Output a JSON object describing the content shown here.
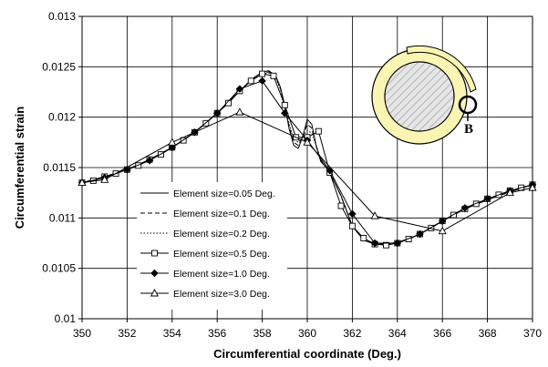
{
  "chart_data": {
    "type": "line",
    "xlabel": "Circumferential coordinate (Deg.)",
    "ylabel": "Circumferential strain",
    "xlim": [
      350,
      370
    ],
    "ylim": [
      0.01,
      0.013
    ],
    "x_ticks": [
      "350",
      "352",
      "354",
      "356",
      "358",
      "360",
      "362",
      "364",
      "366",
      "368",
      "370"
    ],
    "y_ticks": [
      "0.01",
      "0.0105",
      "0.011",
      "0.0115",
      "0.012",
      "0.0125",
      "0.013"
    ],
    "grid": true,
    "legend_position": "lower-left",
    "series": [
      {
        "name": "Element size=0.05 Deg.",
        "style": "solid",
        "marker": "none",
        "x": [
          350,
          351,
          352,
          353,
          354,
          355,
          356,
          357,
          357.5,
          358,
          358.3,
          358.6,
          358.8,
          359,
          359.2,
          359.4,
          359.6,
          359.8,
          360,
          360.2,
          360.4,
          360.6,
          360.8,
          361,
          361.5,
          362,
          362.5,
          363,
          363.5,
          364,
          364.5,
          365,
          366,
          367,
          368,
          369,
          370
        ],
        "y": [
          0.01135,
          0.01141,
          0.01148,
          0.01158,
          0.0117,
          0.01185,
          0.01204,
          0.01226,
          0.01237,
          0.01245,
          0.01246,
          0.01241,
          0.0123,
          0.01212,
          0.01188,
          0.01172,
          0.01169,
          0.01181,
          0.01198,
          0.01193,
          0.01171,
          0.01156,
          0.01151,
          0.01145,
          0.01122,
          0.01092,
          0.01078,
          0.01074,
          0.01074,
          0.01076,
          0.01079,
          0.01084,
          0.01097,
          0.01109,
          0.01118,
          0.01126,
          0.01133
        ]
      },
      {
        "name": "Element size=0.1 Deg.",
        "style": "dashed",
        "marker": "none",
        "x": [
          350,
          351,
          352,
          353,
          354,
          355,
          356,
          357,
          357.5,
          358,
          358.3,
          358.6,
          358.8,
          359,
          359.2,
          359.4,
          359.6,
          359.8,
          360,
          360.2,
          360.4,
          360.6,
          360.8,
          361,
          361.5,
          362,
          362.5,
          363,
          363.5,
          364,
          364.5,
          365,
          366,
          367,
          368,
          369,
          370
        ],
        "y": [
          0.01135,
          0.01141,
          0.01148,
          0.01158,
          0.0117,
          0.01185,
          0.01204,
          0.01226,
          0.01237,
          0.01244,
          0.01245,
          0.0124,
          0.01229,
          0.01211,
          0.0119,
          0.01175,
          0.01172,
          0.01181,
          0.01193,
          0.01189,
          0.01171,
          0.01157,
          0.01151,
          0.01145,
          0.01122,
          0.01092,
          0.01078,
          0.01074,
          0.01074,
          0.01076,
          0.01079,
          0.01084,
          0.01097,
          0.01109,
          0.01118,
          0.01126,
          0.01133
        ]
      },
      {
        "name": "Element size=0.2 Deg.",
        "style": "dotted",
        "marker": "none",
        "x": [
          350,
          351,
          352,
          353,
          354,
          355,
          356,
          357,
          357.5,
          358,
          358.3,
          358.6,
          358.8,
          359,
          359.2,
          359.4,
          359.6,
          359.8,
          360,
          360.2,
          360.4,
          360.6,
          360.8,
          361,
          361.5,
          362,
          362.5,
          363,
          363.5,
          364,
          364.5,
          365,
          366,
          367,
          368,
          369,
          370
        ],
        "y": [
          0.01135,
          0.01141,
          0.01148,
          0.01158,
          0.0117,
          0.01185,
          0.01204,
          0.01226,
          0.01236,
          0.01243,
          0.01244,
          0.01239,
          0.01228,
          0.01211,
          0.01193,
          0.01179,
          0.01175,
          0.0118,
          0.01187,
          0.01184,
          0.01172,
          0.01158,
          0.01151,
          0.01145,
          0.01122,
          0.01092,
          0.01078,
          0.01074,
          0.01074,
          0.01076,
          0.01079,
          0.01084,
          0.01097,
          0.01109,
          0.01118,
          0.01126,
          0.01133
        ]
      },
      {
        "name": "Element size=0.5 Deg.",
        "style": "solid",
        "marker": "square",
        "x": [
          350,
          350.5,
          351,
          351.5,
          352,
          352.5,
          353,
          353.5,
          354,
          354.5,
          355,
          355.5,
          356,
          356.5,
          357,
          357.5,
          358,
          358.5,
          359,
          359.5,
          360,
          360.5,
          361,
          361.5,
          362,
          362.5,
          363,
          363.5,
          364,
          364.5,
          365,
          365.5,
          366,
          366.5,
          367,
          367.5,
          368,
          368.5,
          369,
          369.5,
          370
        ],
        "y": [
          0.01135,
          0.01137,
          0.01141,
          0.01144,
          0.01148,
          0.01152,
          0.01158,
          0.01163,
          0.0117,
          0.01177,
          0.01185,
          0.01194,
          0.01204,
          0.01214,
          0.01226,
          0.01236,
          0.01243,
          0.01241,
          0.01212,
          0.0118,
          0.0118,
          0.01186,
          0.01145,
          0.01112,
          0.01092,
          0.0108,
          0.01074,
          0.01073,
          0.01075,
          0.01079,
          0.01084,
          0.0109,
          0.01097,
          0.01103,
          0.01109,
          0.01114,
          0.01119,
          0.01123,
          0.01127,
          0.0113,
          0.01133
        ]
      },
      {
        "name": "Element size=1.0 Deg.",
        "style": "solid",
        "marker": "diamond",
        "x": [
          350,
          351,
          352,
          353,
          354,
          355,
          356,
          357,
          358,
          359,
          360,
          361,
          362,
          363,
          364,
          365,
          366,
          367,
          368,
          369,
          370
        ],
        "y": [
          0.01135,
          0.0114,
          0.01148,
          0.01157,
          0.0117,
          0.01185,
          0.01204,
          0.01228,
          0.01236,
          0.01204,
          0.01177,
          0.01147,
          0.01104,
          0.01075,
          0.01075,
          0.01084,
          0.01097,
          0.0111,
          0.01119,
          0.01127,
          0.01133
        ]
      },
      {
        "name": "Element size=3.0 Deg.",
        "style": "solid",
        "marker": "triangle",
        "x": [
          350,
          351,
          354,
          357,
          360,
          363,
          366,
          369,
          370
        ],
        "y": [
          0.01135,
          0.01138,
          0.01175,
          0.01205,
          0.01175,
          0.01102,
          0.01087,
          0.01125,
          0.0113
        ]
      }
    ],
    "inset": {
      "label": "B"
    }
  }
}
